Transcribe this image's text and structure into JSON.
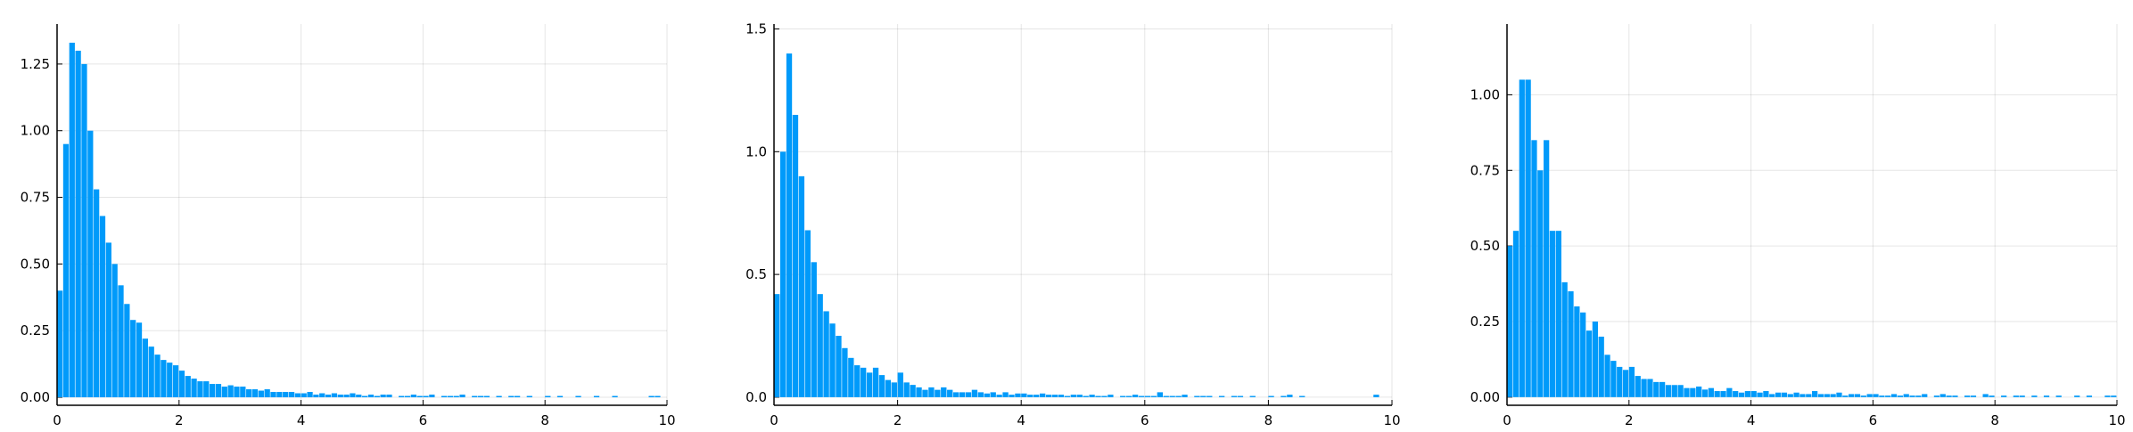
{
  "chart_data": [
    {
      "type": "histogram",
      "color": "#009afa",
      "grid": true,
      "bins": [
        0,
        0.1,
        0.2,
        0.3,
        0.4,
        0.5,
        0.6,
        0.7,
        0.8,
        0.9,
        1,
        1.1,
        1.2,
        1.3,
        1.4,
        1.5,
        1.6,
        1.7,
        1.8,
        1.9,
        2,
        2.1,
        2.2,
        2.3,
        2.4,
        2.5,
        2.6,
        2.7,
        2.8,
        2.9,
        3,
        3.1,
        3.2,
        3.3,
        3.4,
        3.5,
        3.6,
        3.7,
        3.8,
        3.9,
        4,
        4.1,
        4.2,
        4.3,
        4.4,
        4.5,
        4.6,
        4.7,
        4.8,
        4.9,
        5,
        5.1,
        5.2,
        5.3,
        5.4,
        5.5,
        5.6,
        5.7,
        5.8,
        5.9,
        6,
        6.1,
        6.2,
        6.3,
        6.4,
        6.5,
        6.6,
        6.7,
        6.8,
        6.9,
        7,
        7.1,
        7.2,
        7.3,
        7.4,
        7.5,
        7.6,
        7.7,
        7.8,
        7.9,
        8,
        8.1,
        8.2,
        8.3,
        8.4,
        8.5,
        8.6,
        8.7,
        8.8,
        8.9,
        9,
        9.1,
        9.2,
        9.3,
        9.4,
        9.5,
        9.6,
        9.7,
        9.8,
        9.9,
        10
      ],
      "values": [
        0.4,
        0.95,
        1.33,
        1.3,
        1.25,
        1.0,
        0.78,
        0.68,
        0.58,
        0.5,
        0.42,
        0.35,
        0.29,
        0.28,
        0.22,
        0.19,
        0.16,
        0.14,
        0.13,
        0.12,
        0.1,
        0.08,
        0.07,
        0.06,
        0.06,
        0.05,
        0.05,
        0.04,
        0.045,
        0.04,
        0.04,
        0.03,
        0.03,
        0.025,
        0.03,
        0.02,
        0.02,
        0.02,
        0.02,
        0.015,
        0.015,
        0.02,
        0.01,
        0.015,
        0.01,
        0.015,
        0.01,
        0.01,
        0.015,
        0.01,
        0.005,
        0.01,
        0.005,
        0.01,
        0.01,
        0,
        0.005,
        0.005,
        0.01,
        0.005,
        0.005,
        0.01,
        0,
        0.005,
        0.005,
        0.005,
        0.01,
        0,
        0.005,
        0.005,
        0.005,
        0,
        0.005,
        0,
        0.005,
        0.005,
        0,
        0.005,
        0,
        0,
        0.005,
        0,
        0.005,
        0,
        0,
        0.005,
        0,
        0,
        0.005,
        0,
        0,
        0.005,
        0,
        0,
        0,
        0,
        0,
        0.005,
        0.005,
        0
      ],
      "xlim": [
        0,
        10
      ],
      "xticks": [
        0,
        2,
        4,
        6,
        8,
        10
      ],
      "ylim": [
        -0.03,
        1.4
      ],
      "yticks": [
        {
          "value": 0,
          "label": "0.00"
        },
        {
          "value": 0.25,
          "label": "0.25"
        },
        {
          "value": 0.5,
          "label": "0.50"
        },
        {
          "value": 0.75,
          "label": "0.75"
        },
        {
          "value": 1,
          "label": "1.00"
        },
        {
          "value": 1.25,
          "label": "1.25"
        }
      ]
    },
    {
      "type": "histogram",
      "color": "#009afa",
      "grid": true,
      "bins": [
        0,
        0.1,
        0.2,
        0.3,
        0.4,
        0.5,
        0.6,
        0.7,
        0.8,
        0.9,
        1,
        1.1,
        1.2,
        1.3,
        1.4,
        1.5,
        1.6,
        1.7,
        1.8,
        1.9,
        2,
        2.1,
        2.2,
        2.3,
        2.4,
        2.5,
        2.6,
        2.7,
        2.8,
        2.9,
        3,
        3.1,
        3.2,
        3.3,
        3.4,
        3.5,
        3.6,
        3.7,
        3.8,
        3.9,
        4,
        4.1,
        4.2,
        4.3,
        4.4,
        4.5,
        4.6,
        4.7,
        4.8,
        4.9,
        5,
        5.1,
        5.2,
        5.3,
        5.4,
        5.5,
        5.6,
        5.7,
        5.8,
        5.9,
        6,
        6.1,
        6.2,
        6.3,
        6.4,
        6.5,
        6.6,
        6.7,
        6.8,
        6.9,
        7,
        7.1,
        7.2,
        7.3,
        7.4,
        7.5,
        7.6,
        7.7,
        7.8,
        7.9,
        8,
        8.1,
        8.2,
        8.3,
        8.4,
        8.5,
        8.6,
        8.7,
        8.8,
        8.9,
        9,
        9.1,
        9.2,
        9.3,
        9.4,
        9.5,
        9.6,
        9.7,
        9.8,
        9.9,
        10
      ],
      "values": [
        0.42,
        1.0,
        1.4,
        1.15,
        0.9,
        0.68,
        0.55,
        0.42,
        0.35,
        0.3,
        0.25,
        0.2,
        0.16,
        0.13,
        0.12,
        0.1,
        0.12,
        0.09,
        0.07,
        0.06,
        0.1,
        0.06,
        0.05,
        0.04,
        0.03,
        0.04,
        0.03,
        0.04,
        0.03,
        0.02,
        0.02,
        0.02,
        0.03,
        0.02,
        0.015,
        0.02,
        0.01,
        0.02,
        0.01,
        0.015,
        0.015,
        0.01,
        0.01,
        0.015,
        0.01,
        0.01,
        0.01,
        0.005,
        0.01,
        0.01,
        0.005,
        0.01,
        0.005,
        0.005,
        0.01,
        0,
        0.005,
        0.005,
        0.01,
        0.005,
        0.005,
        0.005,
        0.02,
        0.005,
        0.005,
        0.005,
        0.01,
        0,
        0.005,
        0.005,
        0.005,
        0,
        0.005,
        0,
        0.005,
        0.005,
        0,
        0.005,
        0,
        0,
        0.005,
        0,
        0.005,
        0.01,
        0,
        0.005,
        0,
        0,
        0,
        0,
        0,
        0,
        0,
        0,
        0,
        0,
        0,
        0.01,
        0,
        0
      ],
      "xlim": [
        0,
        10
      ],
      "xticks": [
        0,
        2,
        4,
        6,
        8,
        10
      ],
      "ylim": [
        -0.033,
        1.52
      ],
      "yticks": [
        {
          "value": 0,
          "label": "0.0"
        },
        {
          "value": 0.5,
          "label": "0.5"
        },
        {
          "value": 1,
          "label": "1.0"
        },
        {
          "value": 1.5,
          "label": "1.5"
        }
      ]
    },
    {
      "type": "histogram",
      "color": "#009afa",
      "grid": true,
      "bins": [
        0,
        0.1,
        0.2,
        0.3,
        0.4,
        0.5,
        0.6,
        0.7,
        0.8,
        0.9,
        1,
        1.1,
        1.2,
        1.3,
        1.4,
        1.5,
        1.6,
        1.7,
        1.8,
        1.9,
        2,
        2.1,
        2.2,
        2.3,
        2.4,
        2.5,
        2.6,
        2.7,
        2.8,
        2.9,
        3,
        3.1,
        3.2,
        3.3,
        3.4,
        3.5,
        3.6,
        3.7,
        3.8,
        3.9,
        4,
        4.1,
        4.2,
        4.3,
        4.4,
        4.5,
        4.6,
        4.7,
        4.8,
        4.9,
        5,
        5.1,
        5.2,
        5.3,
        5.4,
        5.5,
        5.6,
        5.7,
        5.8,
        5.9,
        6,
        6.1,
        6.2,
        6.3,
        6.4,
        6.5,
        6.6,
        6.7,
        6.8,
        6.9,
        7,
        7.1,
        7.2,
        7.3,
        7.4,
        7.5,
        7.6,
        7.7,
        7.8,
        7.9,
        8,
        8.1,
        8.2,
        8.3,
        8.4,
        8.5,
        8.6,
        8.7,
        8.8,
        8.9,
        9,
        9.1,
        9.2,
        9.3,
        9.4,
        9.5,
        9.6,
        9.7,
        9.8,
        9.9,
        10
      ],
      "values": [
        0.5,
        0.55,
        1.05,
        1.05,
        0.85,
        0.75,
        0.85,
        0.55,
        0.55,
        0.38,
        0.35,
        0.3,
        0.28,
        0.22,
        0.25,
        0.2,
        0.14,
        0.12,
        0.1,
        0.09,
        0.1,
        0.07,
        0.06,
        0.06,
        0.05,
        0.05,
        0.04,
        0.04,
        0.04,
        0.03,
        0.03,
        0.035,
        0.025,
        0.03,
        0.02,
        0.02,
        0.03,
        0.02,
        0.015,
        0.02,
        0.02,
        0.015,
        0.02,
        0.01,
        0.015,
        0.015,
        0.01,
        0.015,
        0.01,
        0.01,
        0.02,
        0.01,
        0.01,
        0.01,
        0.015,
        0.005,
        0.01,
        0.01,
        0.005,
        0.01,
        0.01,
        0.005,
        0.005,
        0.01,
        0.005,
        0.01,
        0.005,
        0.005,
        0.01,
        0,
        0.005,
        0.01,
        0.005,
        0.005,
        0,
        0.005,
        0.005,
        0,
        0.01,
        0.005,
        0,
        0.005,
        0,
        0.005,
        0.005,
        0,
        0.005,
        0,
        0.005,
        0,
        0.005,
        0,
        0,
        0.005,
        0,
        0.005,
        0,
        0,
        0.005,
        0.005
      ],
      "xlim": [
        0,
        10
      ],
      "xticks": [
        0,
        2,
        4,
        6,
        8,
        10
      ],
      "ylim": [
        -0.027,
        1.234
      ],
      "yticks": [
        {
          "value": 0,
          "label": "0.00"
        },
        {
          "value": 0.25,
          "label": "0.25"
        },
        {
          "value": 0.5,
          "label": "0.50"
        },
        {
          "value": 0.75,
          "label": "0.75"
        },
        {
          "value": 1,
          "label": "1.00"
        }
      ]
    }
  ]
}
